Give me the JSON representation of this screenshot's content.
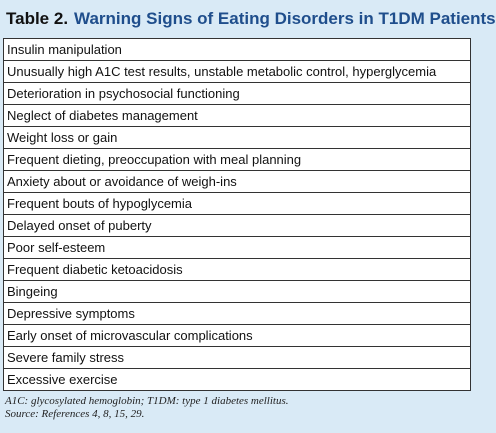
{
  "header": {
    "label": "Table 2.",
    "title": "Warning Signs of Eating Disorders in T1DM Patients"
  },
  "table": {
    "rows": [
      "Insulin manipulation",
      "Unusually high A1C test results, unstable metabolic control, hyperglycemia",
      "Deterioration in psychosocial functioning",
      "Neglect of diabetes management",
      "Weight loss or gain",
      "Frequent dieting, preoccupation with meal planning",
      "Anxiety about or avoidance of weigh-ins",
      "Frequent bouts of hypoglycemia",
      "Delayed onset of puberty",
      "Poor self-esteem",
      "Frequent diabetic ketoacidosis",
      "Bingeing",
      "Depressive symptoms",
      "Early onset of microvascular complications",
      "Severe family stress",
      "Excessive exercise"
    ]
  },
  "footnote": [
    "A1C: glycosylated hemoglobin; T1DM: type 1 diabetes mellitus.",
    "Source: References 4, 8, 15, 29."
  ]
}
